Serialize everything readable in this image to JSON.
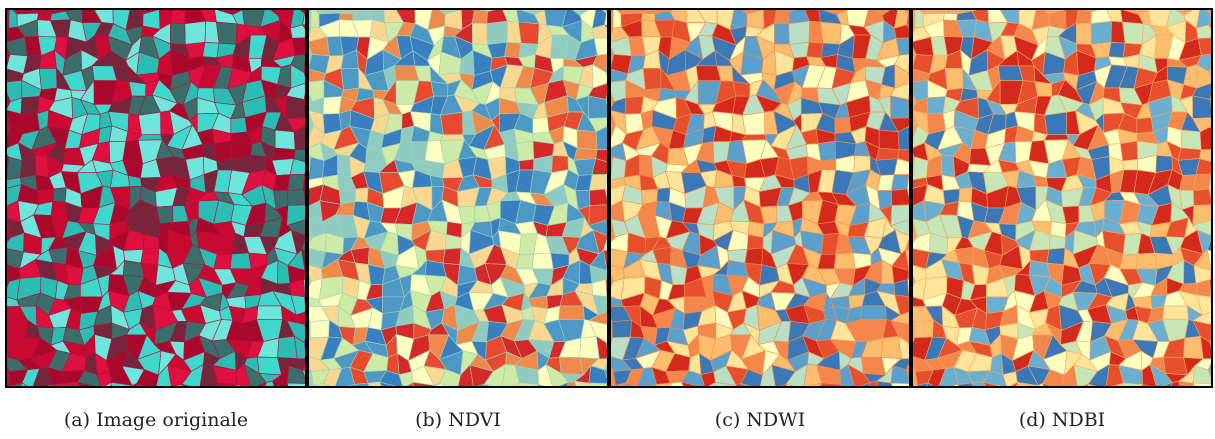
{
  "panels": [
    {
      "caption": "(a) Image originale",
      "palette": [
        "#c80a32",
        "#dd1040",
        "#a8082c",
        "#40d8cc",
        "#2bbdb4",
        "#6ee6dc",
        "#76263c",
        "#3a6e6a"
      ],
      "base_color": "#b0103a"
    },
    {
      "caption": "(b) NDVI",
      "palette": [
        "#d62828",
        "#e84a2f",
        "#f08a4b",
        "#fbd78f",
        "#ffffbf",
        "#cdeaa6",
        "#8fcbc1",
        "#4e98c6",
        "#3a7fbf"
      ],
      "base_color": "#9fd1b5"
    },
    {
      "caption": "(c) NDWI",
      "palette": [
        "#d42a1e",
        "#e7502f",
        "#f4874b",
        "#fdbd6e",
        "#fee59a",
        "#ffffbf",
        "#b9dfc4",
        "#5b9fcc",
        "#3a78b8"
      ],
      "base_color": "#f08f50"
    },
    {
      "caption": "(d) NDBI",
      "palette": [
        "#d42a1e",
        "#e7502f",
        "#f4874b",
        "#fdbd6e",
        "#fee59a",
        "#ffffbf",
        "#c6e6b6",
        "#6aaed0",
        "#3a78b8"
      ],
      "base_color": "#f6a862"
    }
  ]
}
